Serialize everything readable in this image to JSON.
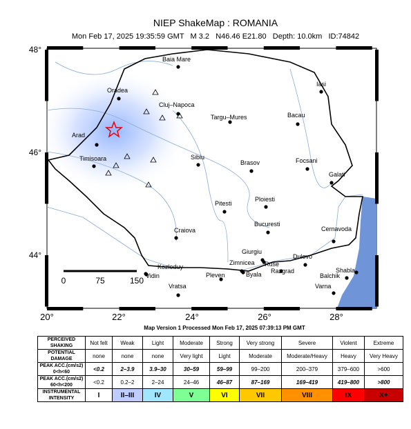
{
  "header": {
    "title": "NIEP ShakeMap : ROMANIA",
    "subtitle": "Mon Feb 17, 2025 19:35:59 GMT   M 3.2   N46.46 E21.80   Depth: 10.0km   ID:74842"
  },
  "map": {
    "lat_ticks": [
      "48°",
      "46°",
      "44°"
    ],
    "lon_ticks": [
      "20°",
      "22°",
      "24°",
      "26°",
      "28°"
    ],
    "scale_bar": [
      "0",
      "75",
      "150"
    ],
    "cities": [
      "Baia Mare",
      "Oradea",
      "Cluj–Napoca",
      "Iasi",
      "Targu–Mures",
      "Bacau",
      "Arad",
      "Timisoara",
      "Sibiu",
      "Brasov",
      "Focsani",
      "Galati",
      "Pitesti",
      "Ploiesti",
      "Bucuresti",
      "Cernavoda",
      "Craiova",
      "Giurgiu",
      "Zimnicea",
      "Ruse",
      "Dulovo",
      "Kozloduy",
      "Vidin",
      "Pleven",
      "Byala",
      "Razgrad",
      "Shabla",
      "Balchik",
      "Vratsa",
      "Varna"
    ]
  },
  "footer": "Map Version 1 Processed Mon Feb 17, 2025 07:39:13 PM GMT",
  "legend": {
    "row_labels": [
      [
        "PERCEIVED",
        "SHAKING"
      ],
      [
        "POTENTIAL",
        "DAMAGE"
      ],
      [
        "PEAK ACC.(cm/s2)",
        "0<h<60"
      ],
      [
        "PEAK ACC.(cm/s2)",
        "60<h<200"
      ],
      [
        "INSTRUMENTAL",
        "INTENSITY"
      ]
    ],
    "rows": [
      [
        "Not felt",
        "Weak",
        "Light",
        "Moderate",
        "Strong",
        "Very strong",
        "Severe",
        "Violent",
        "Extreme"
      ],
      [
        "none",
        "none",
        "none",
        "Very light",
        "Light",
        "Moderate",
        "Moderate/Heavy",
        "Heavy",
        "Very Heavy"
      ],
      [
        "<0.2",
        "2–3.9",
        "3.9–30",
        "30–59",
        "59–99",
        "99–200",
        "200–379",
        "379–600",
        ">600"
      ],
      [
        "<0.2",
        "0.2–2",
        "2–24",
        "24–46",
        "46–87",
        "87–169",
        "169–419",
        "419–800",
        ">800"
      ],
      [
        "I",
        "II–III",
        "IV",
        "V",
        "VI",
        "VII",
        "VIII",
        "IX",
        "X+"
      ]
    ]
  }
}
